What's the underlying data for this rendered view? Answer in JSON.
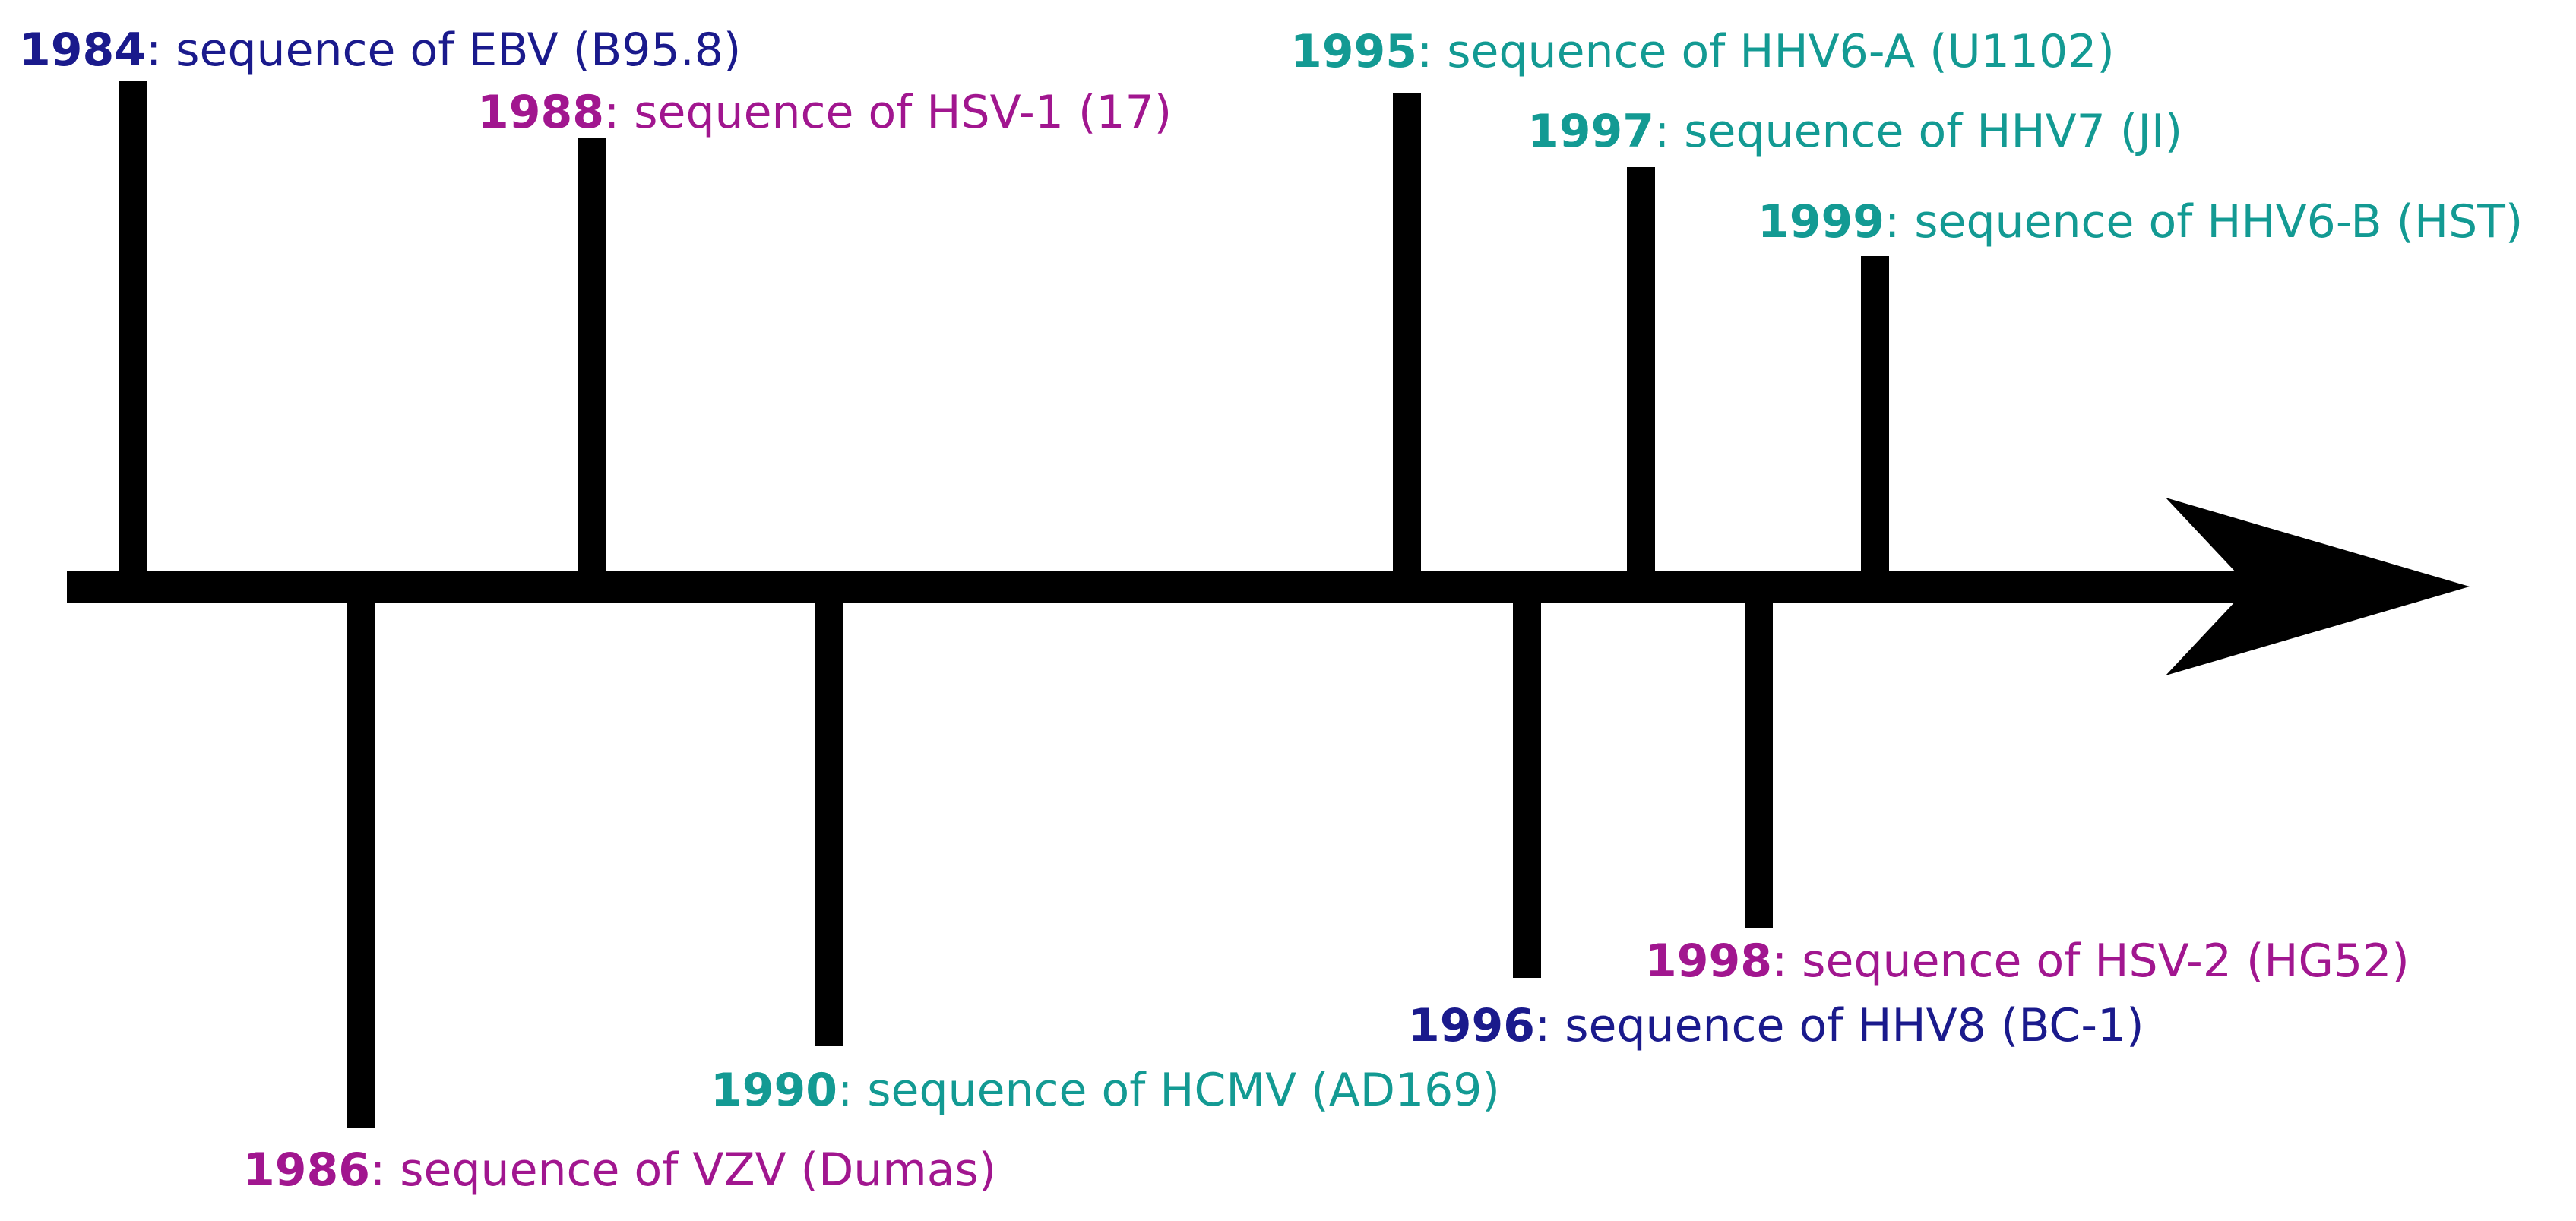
{
  "colors": {
    "navy": "#1a1a8c",
    "magenta": "#a1168f",
    "teal": "#139a93",
    "axis": "#000000"
  },
  "events": [
    {
      "year": "1984",
      "text": ": sequence of EBV (B95.8)",
      "side": "above",
      "color": "navy"
    },
    {
      "year": "1986",
      "text": ": sequence of VZV (Dumas)",
      "side": "below",
      "color": "magenta"
    },
    {
      "year": "1988",
      "text": ": sequence of HSV-1 (17)",
      "side": "above",
      "color": "magenta"
    },
    {
      "year": "1990",
      "text": ": sequence of HCMV (AD169)",
      "side": "below",
      "color": "teal"
    },
    {
      "year": "1995",
      "text": ": sequence of HHV6-A (U1102)",
      "side": "above",
      "color": "teal"
    },
    {
      "year": "1996",
      "text": ": sequence of HHV8 (BC-1)",
      "side": "below",
      "color": "navy"
    },
    {
      "year": "1997",
      "text": ": sequence of HHV7 (JI)",
      "side": "above",
      "color": "teal"
    },
    {
      "year": "1998",
      "text": ": sequence of HSV-2 (HG52)",
      "side": "below",
      "color": "magenta"
    },
    {
      "year": "1999",
      "text": ": sequence of HHV6-B (HST)",
      "side": "above",
      "color": "teal"
    }
  ]
}
